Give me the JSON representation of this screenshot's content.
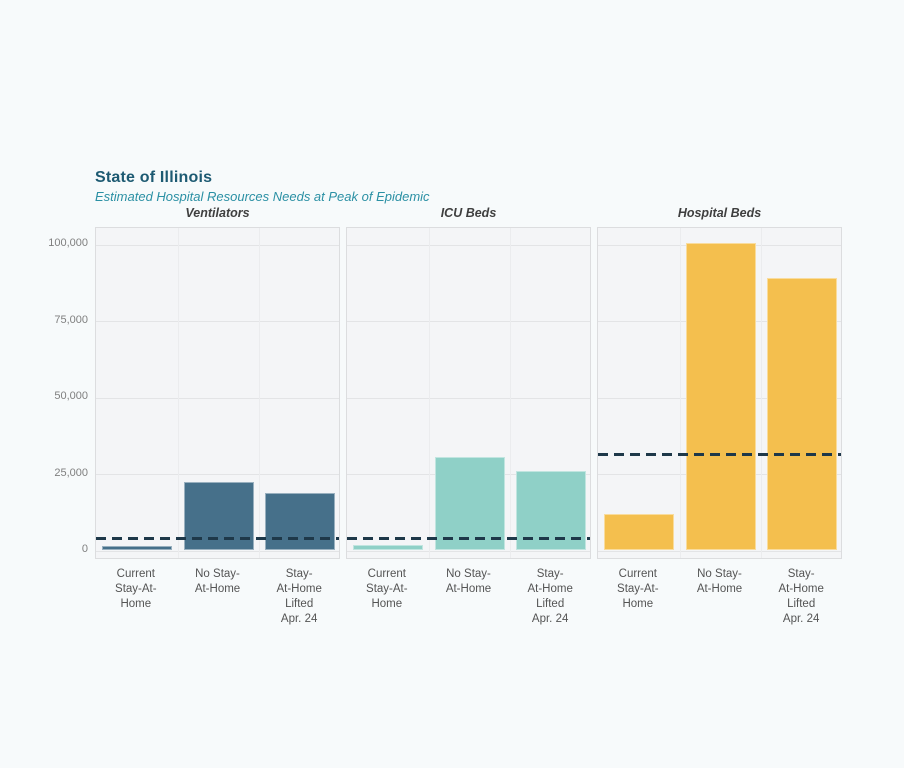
{
  "header": {
    "title": "State of Illinois",
    "subtitle": "Estimated Hospital Resources Needs at Peak of Epidemic"
  },
  "colors": {
    "page_background": "#f7fafb",
    "panel_background": "#f4f5f7",
    "panel_border": "#dcdddf",
    "gridline": "#e3e4e6",
    "title": "#1d5a72",
    "subtitle": "#2b90a4",
    "capacity_line": "#1e3849",
    "ventilators_bar": "#46708a",
    "icu_beds_bar": "#8fd0c7",
    "hospital_beds_bar": "#f4bf4e"
  },
  "chart_data": {
    "type": "bar",
    "title": "State of Illinois",
    "subtitle": "Estimated Hospital Resources Needs at Peak of Epidemic",
    "categories": [
      "Current Stay-At-Home",
      "No Stay-At-Home",
      "Stay-At-Home Lifted Apr. 24"
    ],
    "category_labels_multiline": [
      "Current\nStay-At-\nHome",
      "No Stay-\nAt-Home",
      "Stay-\nAt-Home\nLifted\nApr. 24"
    ],
    "ylim": [
      0,
      100000
    ],
    "y_ticks": [
      0,
      25000,
      50000,
      75000,
      100000
    ],
    "y_tick_labels": [
      "0",
      "25,000",
      "50,000",
      "75,000",
      "100,000"
    ],
    "grid": true,
    "legend_position": "none",
    "panels": [
      {
        "title": "Ventilators",
        "bar_color": "#46708a",
        "values": [
          1500,
          22400,
          18900
        ],
        "capacity_line": 3900
      },
      {
        "title": "ICU Beds",
        "bar_color": "#8fd0c7",
        "values": [
          1800,
          30700,
          26100
        ],
        "capacity_line": 3900
      },
      {
        "title": "Hospital Beds",
        "bar_color": "#f4bf4e",
        "values": [
          11800,
          100400,
          89000
        ],
        "capacity_line": 31300
      }
    ],
    "capacity_line_color": "#1e3849"
  }
}
